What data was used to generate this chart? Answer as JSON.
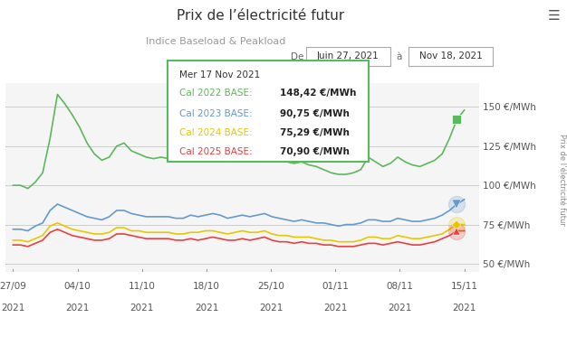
{
  "title": "Prix de l’électricité futur",
  "subtitle": "Indice Baseload & Peakload",
  "date_from": "Juin 27, 2021",
  "date_to": "Nov 18, 2021",
  "ylabel_right": "Prix de l’électricité futur",
  "yticks": [
    50,
    75,
    100,
    125,
    150
  ],
  "ytick_labels": [
    "50 €/MWh",
    "75 €/MWh",
    "100 €/MWh",
    "125 €/MWh",
    "150 €/MWh"
  ],
  "xtick_labels": [
    "27/09\n2021",
    "04/10\n2021",
    "11/10\n2021",
    "18/10\n2021",
    "25/10\n2021",
    "01/11\n2021",
    "08/11\n2021",
    "15/11\n2021"
  ],
  "bg_color": "#ffffff",
  "plot_bg_color": "#f5f5f5",
  "grid_color": "#cccccc",
  "line_colors": {
    "cal2022": "#5cb85c",
    "cal2023": "#6699cc",
    "cal2024": "#e6c800",
    "cal2025": "#e84040"
  },
  "tooltip_date": "Mer 17 Nov 2021",
  "tooltip_entries": [
    {
      "label": "Cal 2022 BASE:",
      "value": "148,42 €/MWh",
      "color": "#5cb85c"
    },
    {
      "label": "Cal 2023 BASE:",
      "value": "90,75 €/MWh",
      "color": "#6699cc"
    },
    {
      "label": "Cal 2024 BASE:",
      "value": "75,29 €/MWh",
      "color": "#e6c800"
    },
    {
      "label": "Cal 2025 BASE:",
      "value": "70,90 €/MWh",
      "color": "#e84040"
    }
  ],
  "n_points": 62,
  "cal2022_y": [
    100,
    100,
    98,
    102,
    108,
    130,
    158,
    152,
    145,
    137,
    127,
    120,
    116,
    118,
    125,
    127,
    122,
    120,
    118,
    117,
    118,
    117,
    115,
    116,
    118,
    117,
    118,
    119,
    118,
    116,
    117,
    119,
    118,
    119,
    120,
    118,
    117,
    115,
    114,
    115,
    113,
    112,
    110,
    108,
    107,
    107,
    108,
    110,
    118,
    115,
    112,
    114,
    118,
    115,
    113,
    112,
    114,
    116,
    120,
    130,
    142,
    148
  ],
  "cal2023_y": [
    72,
    72,
    71,
    74,
    76,
    84,
    88,
    86,
    84,
    82,
    80,
    79,
    78,
    80,
    84,
    84,
    82,
    81,
    80,
    80,
    80,
    80,
    79,
    79,
    81,
    80,
    81,
    82,
    81,
    79,
    80,
    81,
    80,
    81,
    82,
    80,
    79,
    78,
    77,
    78,
    77,
    76,
    76,
    75,
    74,
    75,
    75,
    76,
    78,
    78,
    77,
    77,
    79,
    78,
    77,
    77,
    78,
    79,
    81,
    84,
    88,
    91
  ],
  "cal2024_y": [
    65,
    65,
    64,
    66,
    68,
    74,
    76,
    74,
    72,
    71,
    70,
    69,
    69,
    70,
    73,
    73,
    71,
    71,
    70,
    70,
    70,
    70,
    69,
    69,
    70,
    70,
    71,
    71,
    70,
    69,
    70,
    71,
    70,
    70,
    71,
    69,
    68,
    68,
    67,
    67,
    67,
    66,
    65,
    65,
    64,
    64,
    64,
    65,
    67,
    67,
    66,
    66,
    68,
    67,
    66,
    66,
    67,
    68,
    69,
    72,
    75,
    75
  ],
  "cal2025_y": [
    62,
    62,
    61,
    63,
    65,
    70,
    72,
    70,
    68,
    67,
    66,
    65,
    65,
    66,
    69,
    69,
    68,
    67,
    66,
    66,
    66,
    66,
    65,
    65,
    66,
    65,
    66,
    67,
    66,
    65,
    65,
    66,
    65,
    66,
    67,
    65,
    64,
    64,
    63,
    64,
    63,
    63,
    62,
    62,
    61,
    61,
    61,
    62,
    63,
    63,
    62,
    63,
    64,
    63,
    62,
    62,
    63,
    64,
    66,
    68,
    71,
    71
  ]
}
